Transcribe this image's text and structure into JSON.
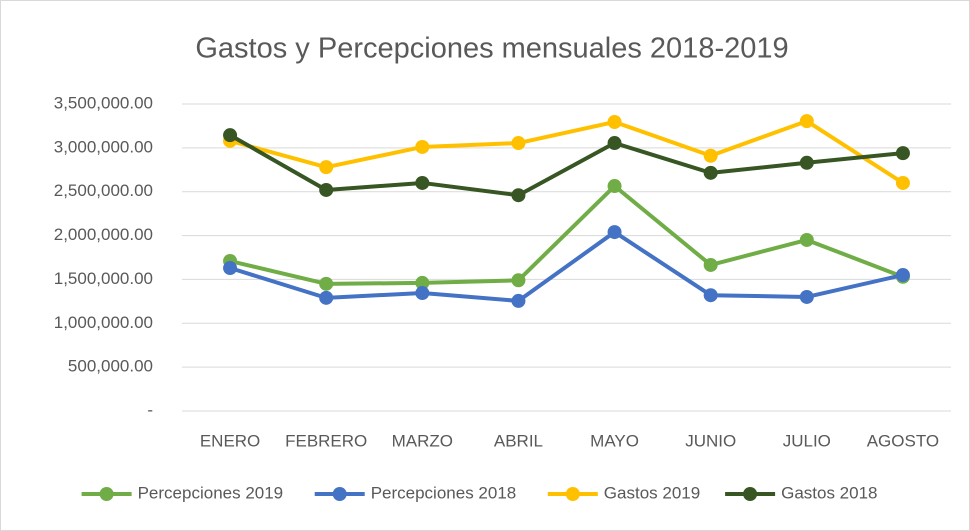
{
  "chart_data": {
    "type": "line",
    "title": "Gastos y Percepciones mensuales 2018-2019",
    "categories": [
      "ENERO",
      "FEBRERO",
      "MARZO",
      "ABRIL",
      "MAYO",
      "JUNIO",
      "JULIO",
      "AGOSTO"
    ],
    "series": [
      {
        "name": "Percepciones 2019",
        "color": "#70ad47",
        "values": [
          1710000,
          1450000,
          1460000,
          1490000,
          2565000,
          1665000,
          1950000,
          1530000
        ]
      },
      {
        "name": "Percepciones 2018",
        "color": "#4472c4",
        "values": [
          1630000,
          1290000,
          1345000,
          1255000,
          2040000,
          1320000,
          1300000,
          1550000
        ]
      },
      {
        "name": "Gastos 2019",
        "color": "#ffc000",
        "values": [
          3080000,
          2780000,
          3010000,
          3055000,
          3295000,
          2910000,
          3305000,
          2600000
        ]
      },
      {
        "name": "Gastos 2018",
        "color": "#375623",
        "values": [
          3145000,
          2520000,
          2600000,
          2460000,
          3055000,
          2715000,
          2830000,
          2940000
        ]
      }
    ],
    "ylim": [
      0,
      3500000
    ],
    "yticks": [
      {
        "value": 0,
        "label": "-"
      },
      {
        "value": 500000,
        "label": "500,000.00"
      },
      {
        "value": 1000000,
        "label": "1,000,000.00"
      },
      {
        "value": 1500000,
        "label": "1,500,000.00"
      },
      {
        "value": 2000000,
        "label": "2,000,000.00"
      },
      {
        "value": 2500000,
        "label": "2,500,000.00"
      },
      {
        "value": 3000000,
        "label": "3,000,000.00"
      },
      {
        "value": 3500000,
        "label": "3,500,000.00"
      }
    ],
    "grid": true,
    "legend": "bottom"
  }
}
